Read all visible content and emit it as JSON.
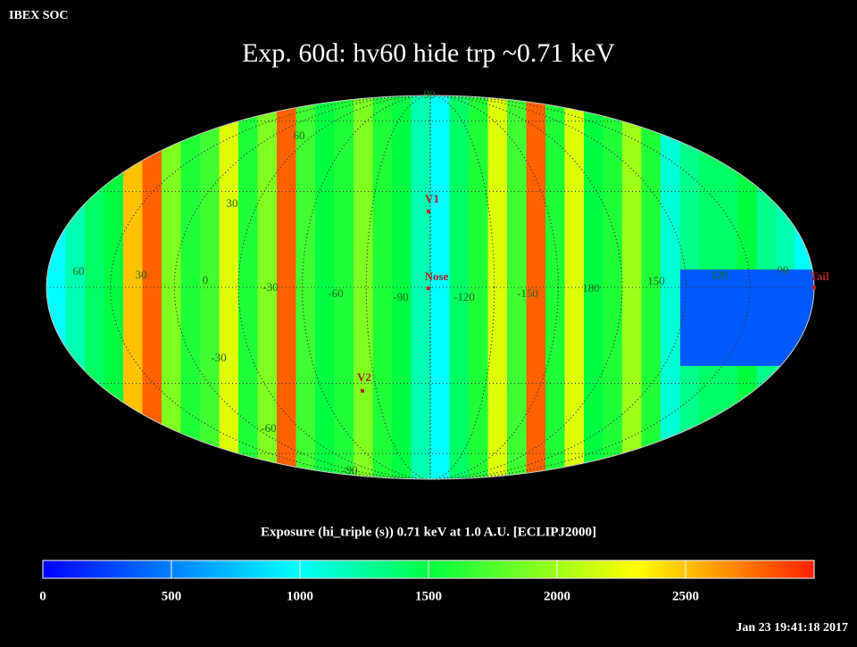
{
  "header": {
    "label": "IBEX SOC",
    "timestamp": "Jan 23 19:41:18 2017"
  },
  "map": {
    "title": "Exp.   60d: hv60 hide trp ~0.71 keV",
    "lat_labels": [
      "90",
      "60",
      "30",
      "-30",
      "-60",
      "-90"
    ],
    "lon_labels": [
      "60",
      "30",
      "0",
      "-30",
      "-60",
      "-90",
      "-120",
      "-150",
      "180",
      "150",
      "120",
      "90"
    ],
    "markers": [
      "V1",
      "Nose",
      "V2",
      "Tail"
    ],
    "strips": [
      1000,
      1200,
      1400,
      1500,
      2500,
      2800,
      1900,
      1600,
      1700,
      2200,
      1600,
      1900,
      2800,
      1700,
      1500,
      1600,
      1900,
      1600,
      1500,
      1200,
      1000,
      1400,
      1600,
      2200,
      1700,
      2800,
      1600,
      2200,
      1500,
      1600,
      2000,
      1600,
      1100,
      1300,
      1400,
      1400,
      1500,
      1300,
      1200,
      1000
    ],
    "low_region": 350,
    "colorbar": {
      "title": "Exposure (hi_triple (s))  0.71 keV at 1.0 A.U. [ECLIPJ2000]",
      "range": [
        0,
        3000
      ],
      "ticks": [
        0,
        500,
        1000,
        1500,
        2000,
        2500
      ]
    }
  }
}
